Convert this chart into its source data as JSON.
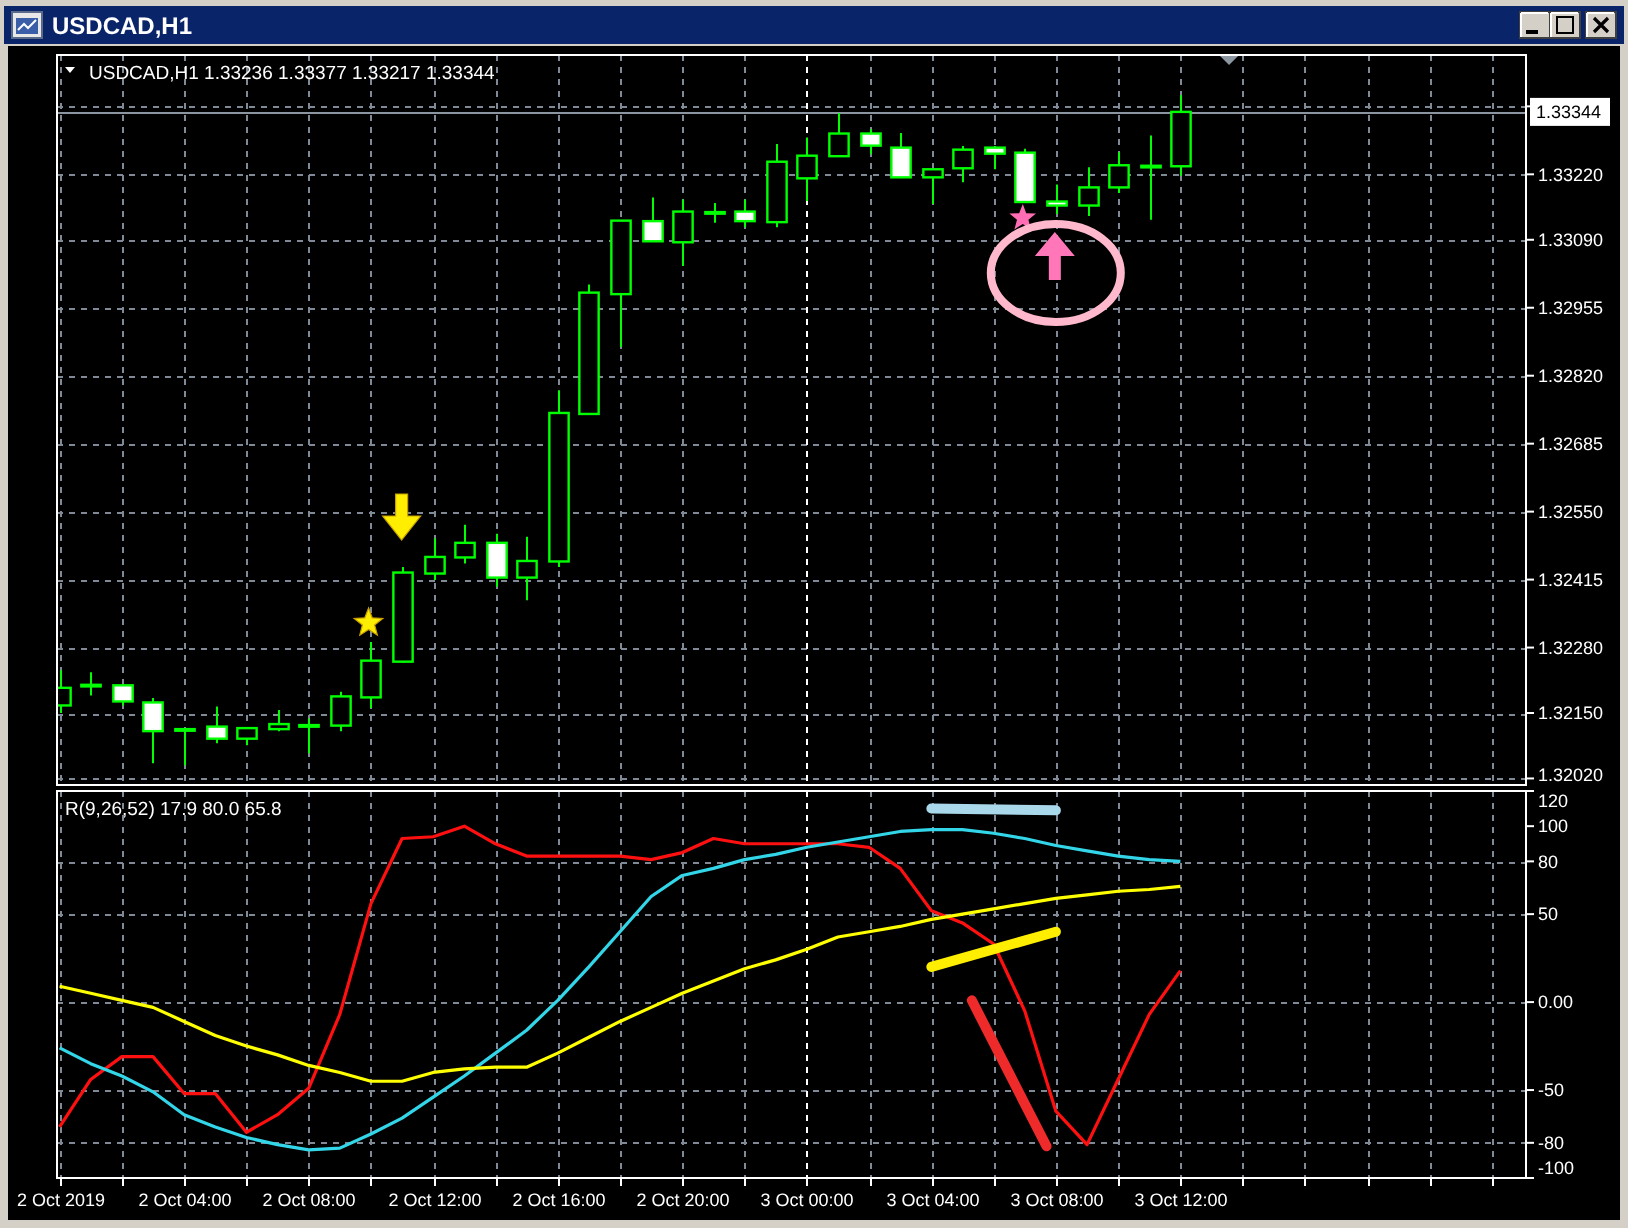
{
  "chart_data": [
    {
      "type": "candlestick",
      "title": "USDCAD,H1",
      "subtitle": "USDCAD,H1 1.33236 1.33377 1.33217 1.33344",
      "x": [
        "2019-10-02T00:00",
        "2019-10-02T01:00",
        "2019-10-02T02:00",
        "2019-10-02T03:00",
        "2019-10-02T04:00",
        "2019-10-02T05:00",
        "2019-10-02T06:00",
        "2019-10-02T07:00",
        "2019-10-02T08:00",
        "2019-10-02T09:00",
        "2019-10-02T10:00",
        "2019-10-02T11:00",
        "2019-10-02T12:00",
        "2019-10-02T13:00",
        "2019-10-02T14:00",
        "2019-10-02T15:00",
        "2019-10-02T16:00",
        "2019-10-02T17:00",
        "2019-10-02T18:00",
        "2019-10-02T19:00",
        "2019-10-02T20:00",
        "2019-10-02T21:00",
        "2019-10-02T22:00",
        "2019-10-02T23:00",
        "2019-10-03T00:00",
        "2019-10-03T01:00",
        "2019-10-03T02:00",
        "2019-10-03T03:00",
        "2019-10-03T04:00",
        "2019-10-03T05:00",
        "2019-10-03T06:00",
        "2019-10-03T07:00",
        "2019-10-03T08:00",
        "2019-10-03T09:00",
        "2019-10-03T10:00",
        "2019-10-03T11:00",
        "2019-10-03T12:00"
      ],
      "ohlc": [
        [
          1.32165,
          1.32235,
          1.3215,
          1.322
        ],
        [
          1.32204,
          1.32231,
          1.32185,
          1.32206
        ],
        [
          1.32205,
          1.32205,
          1.32165,
          1.32173
        ],
        [
          1.32171,
          1.3218,
          1.3205,
          1.32114
        ],
        [
          1.32118,
          1.3212,
          1.32046,
          1.32118
        ],
        [
          1.32123,
          1.32163,
          1.3209,
          1.32099
        ],
        [
          1.32099,
          1.3212,
          1.32086,
          1.3212
        ],
        [
          1.32118,
          1.32156,
          1.32114,
          1.32128
        ],
        [
          1.32124,
          1.32139,
          1.3207,
          1.32126
        ],
        [
          1.32125,
          1.32192,
          1.32114,
          1.32183
        ],
        [
          1.32181,
          1.32291,
          1.3216,
          1.32254
        ],
        [
          1.32252,
          1.3244,
          1.3225,
          1.32429
        ],
        [
          1.32427,
          1.32497,
          1.32414,
          1.3246
        ],
        [
          1.32459,
          1.32524,
          1.32447,
          1.32488
        ],
        [
          1.32488,
          1.32506,
          1.32401,
          1.32419
        ],
        [
          1.32419,
          1.325,
          1.32374,
          1.32452
        ],
        [
          1.32451,
          1.32791,
          1.3244,
          1.32746
        ],
        [
          1.32744,
          1.33001,
          1.32744,
          1.32985
        ],
        [
          1.32982,
          1.33128,
          1.32877,
          1.33128
        ],
        [
          1.33127,
          1.33174,
          1.33087,
          1.33087
        ],
        [
          1.33085,
          1.3317,
          1.33038,
          1.33146
        ],
        [
          1.33143,
          1.33163,
          1.33124,
          1.33145
        ],
        [
          1.33146,
          1.3317,
          1.33115,
          1.33127
        ],
        [
          1.33125,
          1.3328,
          1.33115,
          1.33245
        ],
        [
          1.33212,
          1.33293,
          1.33167,
          1.33257
        ],
        [
          1.33256,
          1.33342,
          1.33256,
          1.33301
        ],
        [
          1.33301,
          1.3331,
          1.3326,
          1.33277
        ],
        [
          1.33273,
          1.33302,
          1.33214,
          1.33214
        ],
        [
          1.33214,
          1.3323,
          1.33161,
          1.3323
        ],
        [
          1.33232,
          1.33276,
          1.33204,
          1.33269
        ],
        [
          1.33273,
          1.33276,
          1.3323,
          1.33261
        ],
        [
          1.33263,
          1.33271,
          1.33165,
          1.33165
        ],
        [
          1.33166,
          1.332,
          1.33141,
          1.33158
        ],
        [
          1.33158,
          1.33234,
          1.33137,
          1.33194
        ],
        [
          1.33194,
          1.33264,
          1.33183,
          1.33238
        ],
        [
          1.33235,
          1.33297,
          1.3313,
          1.33237
        ],
        [
          1.33236,
          1.33377,
          1.33217,
          1.33344
        ]
      ],
      "color": "#00ff00",
      "colors": [
        "#000000",
        "#000000",
        "#ffffff",
        "#ffffff",
        "#000000",
        "#ffffff",
        "#000000",
        "#000000",
        "#000000",
        "#000000",
        "#000000",
        "#000000",
        "#000000",
        "#000000",
        "#ffffff",
        "#000000",
        "#000000",
        "#000000",
        "#000000",
        "#ffffff",
        "#000000",
        "#000000",
        "#ffffff",
        "#000000",
        "#000000",
        "#000000",
        "#ffffff",
        "#ffffff",
        "#000000",
        "#000000",
        "#ffffff",
        "#ffffff",
        "#ffffff",
        "#000000",
        "#000000",
        "#000000",
        "#000000"
      ],
      "xlim": [
        "2019-10-01T23:55",
        "2019-10-03T23:06"
      ],
      "xticks": [
        {
          "value": "2019-10-02T00:00",
          "label": null
        },
        {
          "value": "2019-10-02T02:00",
          "label": null
        },
        {
          "value": "2019-10-02T04:00",
          "label": null
        },
        {
          "value": "2019-10-02T06:00",
          "label": null
        },
        {
          "value": "2019-10-02T08:00",
          "label": null
        },
        {
          "value": "2019-10-02T10:00",
          "label": null
        },
        {
          "value": "2019-10-02T12:00",
          "label": null
        },
        {
          "value": "2019-10-02T14:00",
          "label": null
        },
        {
          "value": "2019-10-02T16:00",
          "label": null
        },
        {
          "value": "2019-10-02T18:00",
          "label": null
        },
        {
          "value": "2019-10-02T20:00",
          "label": null
        },
        {
          "value": "2019-10-02T22:00",
          "label": null
        },
        {
          "value": "2019-10-03T00:00",
          "label": null
        },
        {
          "value": "2019-10-03T02:00",
          "label": null
        },
        {
          "value": "2019-10-03T04:00",
          "label": null
        },
        {
          "value": "2019-10-03T06:00",
          "label": null
        },
        {
          "value": "2019-10-03T08:00",
          "label": null
        },
        {
          "value": "2019-10-03T10:00",
          "label": null
        },
        {
          "value": "2019-10-03T12:00",
          "label": null
        },
        {
          "value": "2019-10-03T14:00",
          "label": null
        },
        {
          "value": "2019-10-03T16:00",
          "label": null
        },
        {
          "value": "2019-10-03T18:00",
          "label": null
        },
        {
          "value": "2019-10-03T20:00",
          "label": null
        },
        {
          "value": "2019-10-03T22:00",
          "label": null
        }
      ],
      "ylim": [
        1.32007,
        1.33457
      ],
      "yticks": [
        {
          "value": 1.3202,
          "label": "1.32020"
        },
        {
          "value": 1.3215,
          "label": "1.32150"
        },
        {
          "value": 1.3228,
          "label": "1.32280"
        },
        {
          "value": 1.32415,
          "label": "1.32415"
        },
        {
          "value": 1.3255,
          "label": "1.32550"
        },
        {
          "value": 1.32685,
          "label": "1.32685"
        },
        {
          "value": 1.3282,
          "label": "1.32820"
        },
        {
          "value": 1.32955,
          "label": "1.32955"
        },
        {
          "value": 1.3309,
          "label": "1.33090"
        },
        {
          "value": 1.3322,
          "label": "1.33220"
        },
        {
          "value": 1.33355,
          "label": null
        }
      ],
      "grid": true,
      "tick_labels": "y",
      "ref_lines": [
        {
          "axis": "x",
          "value": "2019-10-03T00:00",
          "color": "#ffffff",
          "line_style": "dashed"
        },
        {
          "axis": "y",
          "value": 1.33344,
          "label": "1.33344",
          "color": "#8c96a0",
          "line_style": "solid"
        }
      ]
    },
    {
      "type": "line",
      "title": "R(9,26,52) 17.9 80.0 65.8",
      "x": [
        "2019-10-02T00:00",
        "2019-10-02T01:00",
        "2019-10-02T02:00",
        "2019-10-02T03:00",
        "2019-10-02T04:00",
        "2019-10-02T05:00",
        "2019-10-02T06:00",
        "2019-10-02T07:00",
        "2019-10-02T08:00",
        "2019-10-02T09:00",
        "2019-10-02T10:00",
        "2019-10-02T11:00",
        "2019-10-02T12:00",
        "2019-10-02T13:00",
        "2019-10-02T14:00",
        "2019-10-02T15:00",
        "2019-10-02T16:00",
        "2019-10-02T17:00",
        "2019-10-02T18:00",
        "2019-10-02T19:00",
        "2019-10-02T20:00",
        "2019-10-02T21:00",
        "2019-10-02T22:00",
        "2019-10-02T23:00",
        "2019-10-03T00:00",
        "2019-10-03T01:00",
        "2019-10-03T02:00",
        "2019-10-03T03:00",
        "2019-10-03T04:00",
        "2019-10-03T05:00",
        "2019-10-03T06:00",
        "2019-10-03T07:00",
        "2019-10-03T08:00",
        "2019-10-03T09:00",
        "2019-10-03T10:00",
        "2019-10-03T11:00",
        "2019-10-03T12:00"
      ],
      "series": [
        {
          "color": "#ff1010",
          "values": [
            -71,
            -44,
            -31,
            -31,
            -52,
            -52,
            -74,
            -64,
            -49,
            -7,
            56,
            93,
            94,
            100,
            90,
            83,
            83,
            83,
            83,
            81,
            85,
            93,
            90,
            90,
            90,
            90,
            88,
            76,
            52,
            45,
            33,
            -5,
            -62,
            -81,
            -44,
            -7,
            17.9
          ]
        },
        {
          "color": "#33d6e8",
          "values": [
            -26,
            -35,
            -42,
            -51,
            -64,
            -71,
            -77,
            -81,
            -84,
            -83,
            -75,
            -66,
            -54,
            -42,
            -29,
            -16,
            1,
            20,
            40,
            60,
            72,
            76,
            81,
            84,
            88,
            91,
            94,
            97,
            98,
            98,
            96,
            93,
            89,
            86,
            83,
            81,
            80
          ]
        },
        {
          "color": "#ffff00",
          "values": [
            9,
            5,
            1,
            -3,
            -11,
            -19,
            -25,
            -30,
            -36,
            -40,
            -45,
            -45,
            -40,
            -38,
            -37,
            -37,
            -29,
            -20,
            -11,
            -3,
            5,
            12,
            19,
            24,
            30,
            37,
            40,
            43,
            47,
            50,
            53,
            56,
            59,
            61,
            63,
            64,
            65.8
          ]
        },
        {
          "color": "#a8d8ea",
          "x": [
            "2019-10-03T04:00",
            "2019-10-03T08:00"
          ],
          "values": [
            110,
            109
          ]
        },
        {
          "color": "#ffee00",
          "x": [
            "2019-10-03T04:00",
            "2019-10-03T08:00"
          ],
          "values": [
            20,
            40
          ]
        },
        {
          "color": "#ee2a2a",
          "x": [
            "2019-10-03T05:18",
            "2019-10-03T07:42"
          ],
          "values": [
            1,
            -82
          ]
        }
      ],
      "xlim": [
        "2019-10-01T23:55",
        "2019-10-03T23:06"
      ],
      "xticks": [
        {
          "value": "2019-10-02T00:00",
          "label": "2 Oct 2019"
        },
        {
          "value": "2019-10-02T02:00",
          "label": null
        },
        {
          "value": "2019-10-02T04:00",
          "label": "2 Oct 04:00"
        },
        {
          "value": "2019-10-02T06:00",
          "label": null
        },
        {
          "value": "2019-10-02T08:00",
          "label": "2 Oct 08:00"
        },
        {
          "value": "2019-10-02T10:00",
          "label": null
        },
        {
          "value": "2019-10-02T12:00",
          "label": "2 Oct 12:00"
        },
        {
          "value": "2019-10-02T14:00",
          "label": null
        },
        {
          "value": "2019-10-02T16:00",
          "label": "2 Oct 16:00"
        },
        {
          "value": "2019-10-02T18:00",
          "label": null
        },
        {
          "value": "2019-10-02T20:00",
          "label": "2 Oct 20:00"
        },
        {
          "value": "2019-10-02T22:00",
          "label": null
        },
        {
          "value": "2019-10-03T00:00",
          "label": "3 Oct 00:00"
        },
        {
          "value": "2019-10-03T02:00",
          "label": null
        },
        {
          "value": "2019-10-03T04:00",
          "label": "3 Oct 04:00"
        },
        {
          "value": "2019-10-03T06:00",
          "label": null
        },
        {
          "value": "2019-10-03T08:00",
          "label": "3 Oct 08:00"
        },
        {
          "value": "2019-10-03T10:00",
          "label": null
        },
        {
          "value": "2019-10-03T12:00",
          "label": "3 Oct 12:00"
        },
        {
          "value": "2019-10-03T14:00",
          "label": null
        },
        {
          "value": "2019-10-03T16:00",
          "label": null
        },
        {
          "value": "2019-10-03T18:00",
          "label": null
        },
        {
          "value": "2019-10-03T20:00",
          "label": null
        },
        {
          "value": "2019-10-03T22:00",
          "label": null
        }
      ],
      "ylim": [
        -100,
        120
      ],
      "yticks": [
        120,
        100,
        80,
        50,
        {
          "value": 0,
          "label": "0.00"
        },
        -50,
        -80,
        -100
      ],
      "grid": "x",
      "line_style": "solid",
      "ref_lines": [
        {
          "axis": "y",
          "value": 80,
          "color": "#7f8a96",
          "line_style": "dashed"
        },
        {
          "axis": "y",
          "value": 50,
          "color": "#7f8a96",
          "line_style": "dashed"
        },
        {
          "axis": "y",
          "value": 0,
          "color": "#7f8a96",
          "line_style": "dashed"
        },
        {
          "axis": "y",
          "value": -50,
          "color": "#7f8a96",
          "line_style": "dashed"
        },
        {
          "axis": "y",
          "value": -80,
          "color": "#7f8a96",
          "line_style": "dashed"
        },
        {
          "axis": "x",
          "value": "2019-10-03T00:00",
          "color": "#ffffff",
          "line_style": "dashed"
        }
      ]
    }
  ]
}
